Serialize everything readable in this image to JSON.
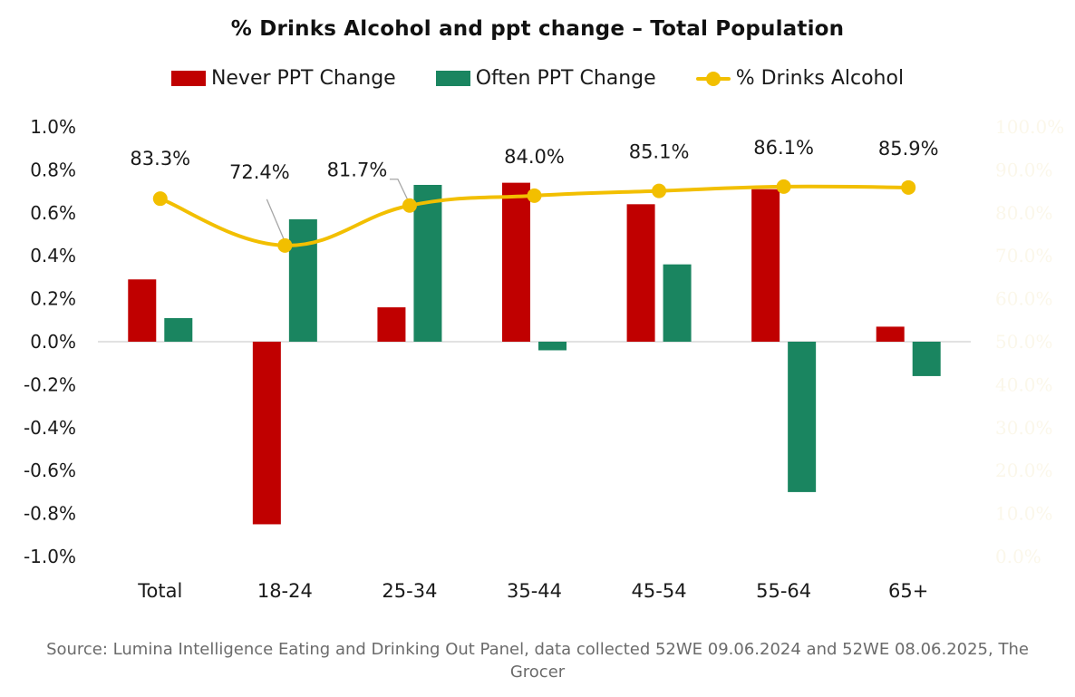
{
  "title": "% Drinks Alcohol and ppt change – Total Population",
  "legend": {
    "never": "Never PPT Change",
    "often": "Often PPT Change",
    "drinks": "% Drinks Alcohol"
  },
  "colors": {
    "never": "#C00000",
    "often": "#1A8560",
    "drinks": "#F2BF00",
    "secondary_axis_text": "#FBF7EA",
    "source_text": "#6B6B6B"
  },
  "source": "Source: Lumina Intelligence Eating and Drinking Out Panel, data collected 52WE 09.06.2024 and 52WE 08.06.2025, The Grocer",
  "chart_data": {
    "type": "bar",
    "combo": "bar + line (secondary axis)",
    "title": "% Drinks Alcohol and ppt change – Total Population",
    "categories": [
      "Total",
      "18-24",
      "25-34",
      "35-44",
      "45-54",
      "55-64",
      "65+"
    ],
    "series": [
      {
        "name": "Never PPT Change",
        "type": "bar",
        "axis": "primary",
        "color": "#C00000",
        "values": [
          0.29,
          -0.85,
          0.16,
          0.74,
          0.64,
          0.71,
          0.07
        ]
      },
      {
        "name": "Often PPT Change",
        "type": "bar",
        "axis": "primary",
        "color": "#1A8560",
        "values": [
          0.11,
          0.57,
          0.73,
          -0.04,
          0.36,
          -0.7,
          -0.16
        ]
      },
      {
        "name": "% Drinks Alcohol",
        "type": "line",
        "axis": "secondary",
        "color": "#F2BF00",
        "values": [
          83.3,
          72.4,
          81.7,
          84.0,
          85.1,
          86.1,
          85.9
        ],
        "labels": [
          "83.3%",
          "72.4%",
          "81.7%",
          "84.0%",
          "85.1%",
          "86.1%",
          "85.9%"
        ]
      }
    ],
    "xlabel": "",
    "ylabel": "",
    "ylim": [
      -1.0,
      1.0
    ],
    "y2lim": [
      0,
      100
    ],
    "yticks": [
      "1.0%",
      "0.8%",
      "0.6%",
      "0.4%",
      "0.2%",
      "0.0%",
      "-0.2%",
      "-0.4%",
      "-0.6%",
      "-0.8%",
      "-1.0%"
    ],
    "y2ticks": [
      "100.0%",
      "90.0%",
      "80.0%",
      "70.0%",
      "60.0%",
      "50.0%",
      "40.0%",
      "30.0%",
      "20.0%",
      "10.0%",
      "0.0%"
    ],
    "grid": false,
    "legend_position": "top"
  }
}
